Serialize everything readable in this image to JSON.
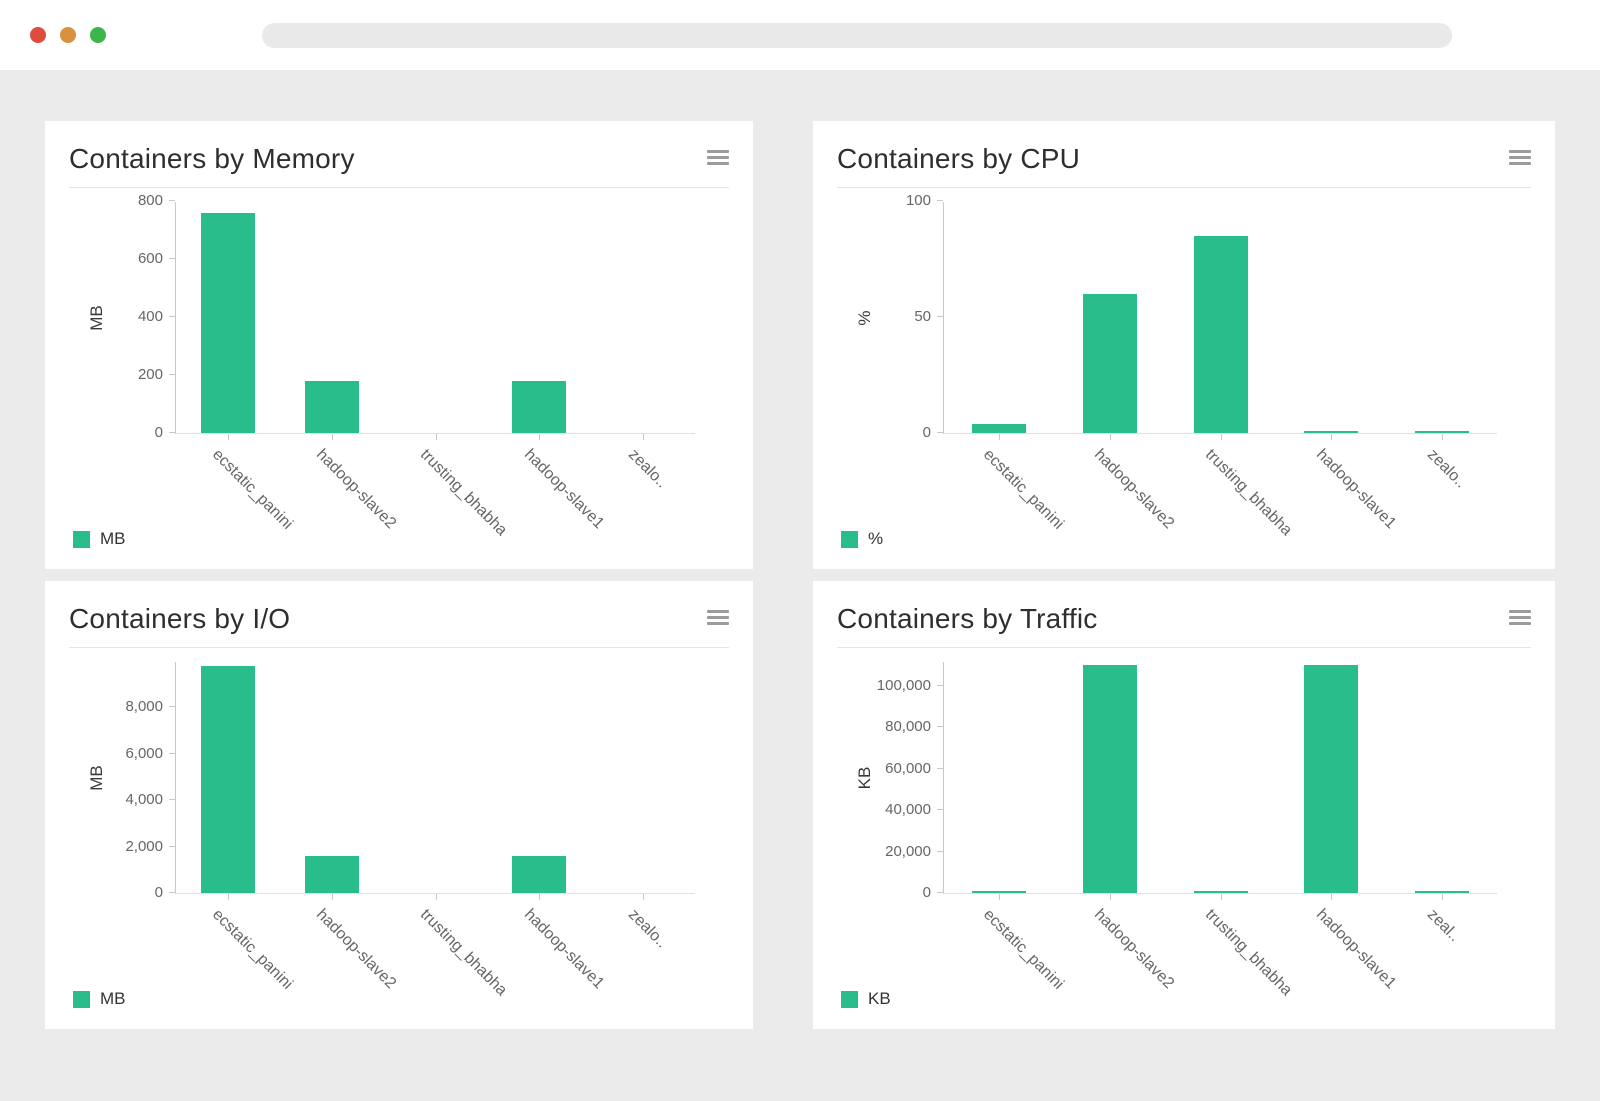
{
  "colors": {
    "accent": "#2abd8c",
    "background": "#ebebeb",
    "axis": "#c9c9c9",
    "traffic_red": "#df4b3c",
    "traffic_orange": "#d9913e",
    "traffic_green": "#3cb549"
  },
  "chart_data": [
    {
      "type": "bar",
      "title": "Containers by Memory",
      "ylabel": "MB",
      "legend": "MB",
      "categories": [
        "ecstatic_panini",
        "hadoop-slave2",
        "trusting_bhabha",
        "hadoop-slave1",
        "zealo.."
      ],
      "values": [
        760,
        180,
        0,
        180,
        0
      ],
      "ytick_values": [
        0,
        200,
        400,
        600,
        800
      ],
      "ytick_labels": [
        "0",
        "200",
        "400",
        "600",
        "800"
      ],
      "ylim": [
        0,
        800
      ],
      "grid": false,
      "legend_position": "bottom-left"
    },
    {
      "type": "bar",
      "title": "Containers by CPU",
      "ylabel": "%",
      "legend": "%",
      "categories": [
        "ecstatic_panini",
        "hadoop-slave2",
        "trusting_bhabha",
        "hadoop-slave1",
        "zealo.."
      ],
      "values": [
        4,
        60,
        85,
        1,
        1
      ],
      "ytick_values": [
        0,
        50,
        100
      ],
      "ytick_labels": [
        "0",
        "50",
        "100"
      ],
      "ylim": [
        0,
        100
      ],
      "grid": false,
      "legend_position": "bottom-left"
    },
    {
      "type": "bar",
      "title": "Containers by I/O",
      "ylabel": "MB",
      "legend": "MB",
      "categories": [
        "ecstatic_panini",
        "hadoop-slave2",
        "trusting_bhabha",
        "hadoop-slave1",
        "zealo.."
      ],
      "values": [
        9800,
        1600,
        0,
        1600,
        0
      ],
      "ytick_values": [
        0,
        2000,
        4000,
        6000,
        8000
      ],
      "ytick_labels": [
        "0",
        "2,000",
        "4,000",
        "6,000",
        "8,000"
      ],
      "ylim": [
        0,
        10000
      ],
      "grid": false,
      "legend_position": "bottom-left"
    },
    {
      "type": "bar",
      "title": "Containers by Traffic",
      "ylabel": "KB",
      "legend": "KB",
      "categories": [
        "ecstatic_panini",
        "hadoop-slave2",
        "trusting_bhabha",
        "hadoop-slave1",
        "zeal.."
      ],
      "values": [
        500,
        110000,
        500,
        110000,
        500
      ],
      "ytick_values": [
        0,
        20000,
        40000,
        60000,
        80000,
        100000
      ],
      "ytick_labels": [
        "0",
        "20,000",
        "40,000",
        "60,000",
        "80,000",
        "100,000"
      ],
      "ylim": [
        0,
        112000
      ],
      "grid": false,
      "legend_position": "bottom-left"
    }
  ]
}
